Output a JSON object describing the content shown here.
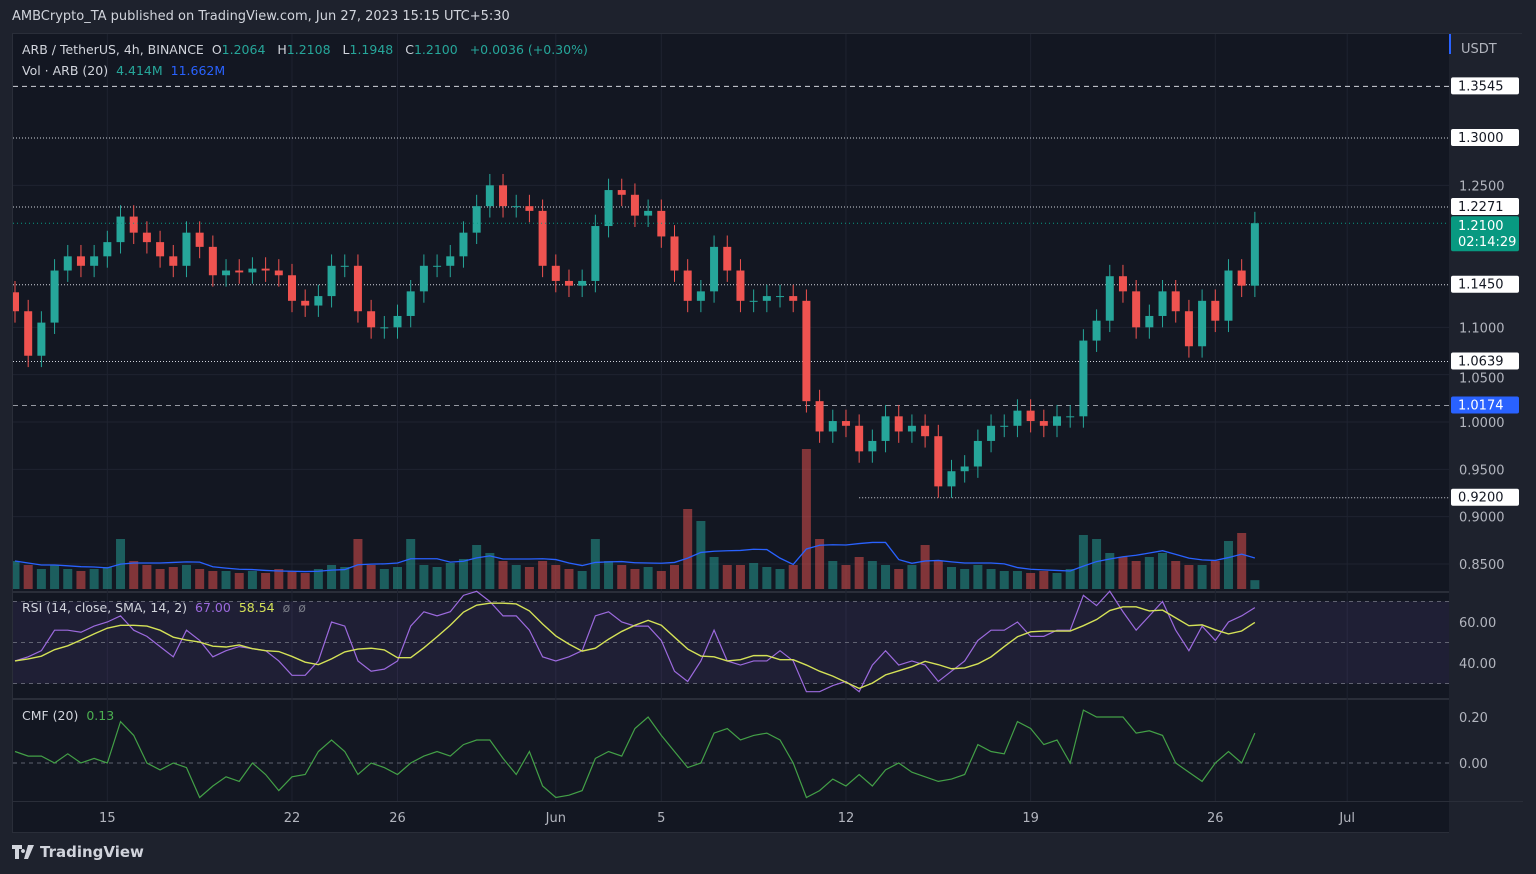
{
  "header": {
    "published": "AMBCrypto_TA published on TradingView.com, Jun 27, 2023 15:15 UTC+5:30"
  },
  "legend": {
    "symbol": "ARB / TetherUS, 4h, BINANCE",
    "o_label": "O",
    "o": "1.2064",
    "h_label": "H",
    "h": "1.2108",
    "l_label": "L",
    "l": "1.1948",
    "c_label": "C",
    "c": "1.2100",
    "change": "+0.0036 (+0.30%)",
    "vol_label": "Vol · ARB (20)",
    "vol": "4.414M",
    "vol_ma": "11.662M",
    "rsi_label": "RSI (14, close, SMA, 14, 2)",
    "rsi": "67.00",
    "rsi_sma": "58.54",
    "rsi_extra1": "ø",
    "rsi_extra2": "ø",
    "cmf_label": "CMF (20)",
    "cmf": "0.13"
  },
  "axis": {
    "currency": "USDT",
    "countdown": "02:14:29"
  },
  "footer": {
    "brand": "TradingView"
  },
  "colors": {
    "up": "#26a69a",
    "down": "#ef5350",
    "vol_ma": "#2962ff",
    "rsi": "#9c6ade",
    "rsi_sma": "#d4e157",
    "cmf": "#43a047",
    "last_price": "#089981",
    "marker": "#2962ff"
  },
  "chart_data": {
    "type": "candlestick",
    "price_ticks": [
      "1.2500",
      "1.1000",
      "1.0500",
      "1.0000",
      "0.9500",
      "0.9000",
      "0.8500"
    ],
    "levels": [
      {
        "value": "1.3545",
        "style": "dashed"
      },
      {
        "value": "1.3000",
        "style": "dotted"
      },
      {
        "value": "1.2271",
        "style": "dotted"
      },
      {
        "value": "1.1450",
        "style": "dotted"
      },
      {
        "value": "1.0639",
        "style": "dotted"
      },
      {
        "value": "1.0174",
        "style": "dashed",
        "highlight": true
      },
      {
        "value": "0.9200",
        "style": "dotted",
        "from": "06-12 12:00"
      }
    ],
    "last_price": "1.2100",
    "x_ticks": [
      {
        "label": "15",
        "date": "05-15 00:00"
      },
      {
        "label": "22",
        "date": "05-22 00:00"
      },
      {
        "label": "26",
        "date": "05-26 00:00"
      },
      {
        "label": "Jun",
        "date": "06-01 00:00"
      },
      {
        "label": "5",
        "date": "06-05 00:00"
      },
      {
        "label": "12",
        "date": "06-12 00:00"
      },
      {
        "label": "19",
        "date": "06-19 00:00"
      },
      {
        "label": "26",
        "date": "06-26 00:00"
      },
      {
        "label": "Jul",
        "date": "07-01 00:00"
      }
    ],
    "x": [
      "05-11 12:00",
      "05-12 00:00",
      "05-12 12:00",
      "05-13 00:00",
      "05-13 12:00",
      "05-14 00:00",
      "05-14 12:00",
      "05-15 00:00",
      "05-15 12:00",
      "05-16 00:00",
      "05-16 12:00",
      "05-17 00:00",
      "05-17 12:00",
      "05-18 00:00",
      "05-18 12:00",
      "05-19 00:00",
      "05-19 12:00",
      "05-20 00:00",
      "05-20 12:00",
      "05-21 00:00",
      "05-21 12:00",
      "05-22 00:00",
      "05-22 12:00",
      "05-23 00:00",
      "05-23 12:00",
      "05-24 00:00",
      "05-24 12:00",
      "05-25 00:00",
      "05-25 12:00",
      "05-26 00:00",
      "05-26 12:00",
      "05-27 00:00",
      "05-27 12:00",
      "05-28 00:00",
      "05-28 12:00",
      "05-29 00:00",
      "05-29 12:00",
      "05-30 00:00",
      "05-30 12:00",
      "05-31 00:00",
      "05-31 12:00",
      "06-01 00:00",
      "06-01 12:00",
      "06-02 00:00",
      "06-02 12:00",
      "06-03 00:00",
      "06-03 12:00",
      "06-04 00:00",
      "06-04 12:00",
      "06-05 00:00",
      "06-05 12:00",
      "06-06 00:00",
      "06-06 12:00",
      "06-07 00:00",
      "06-07 12:00",
      "06-08 00:00",
      "06-08 12:00",
      "06-09 00:00",
      "06-09 12:00",
      "06-10 00:00",
      "06-10 12:00",
      "06-11 00:00",
      "06-11 12:00",
      "06-12 00:00",
      "06-12 12:00",
      "06-13 00:00",
      "06-13 12:00",
      "06-14 00:00",
      "06-14 12:00",
      "06-15 00:00",
      "06-15 12:00",
      "06-16 00:00",
      "06-16 12:00",
      "06-17 00:00",
      "06-17 12:00",
      "06-18 00:00",
      "06-18 12:00",
      "06-19 00:00",
      "06-19 12:00",
      "06-20 00:00",
      "06-20 12:00",
      "06-21 00:00",
      "06-21 12:00",
      "06-22 00:00",
      "06-22 12:00",
      "06-23 00:00",
      "06-23 12:00",
      "06-24 00:00",
      "06-24 12:00",
      "06-25 00:00",
      "06-25 12:00",
      "06-26 00:00",
      "06-26 12:00",
      "06-27 00:00",
      "06-27 12:00"
    ],
    "close": [
      1.117,
      1.07,
      1.105,
      1.16,
      1.175,
      1.165,
      1.175,
      1.19,
      1.217,
      1.2,
      1.19,
      1.175,
      1.165,
      1.2,
      1.185,
      1.155,
      1.16,
      1.158,
      1.162,
      1.16,
      1.155,
      1.128,
      1.123,
      1.133,
      1.165,
      1.165,
      1.117,
      1.1,
      1.1,
      1.112,
      1.138,
      1.165,
      1.165,
      1.175,
      1.2,
      1.228,
      1.25,
      1.228,
      1.228,
      1.223,
      1.165,
      1.149,
      1.144,
      1.149,
      1.207,
      1.245,
      1.24,
      1.218,
      1.223,
      1.196,
      1.16,
      1.128,
      1.138,
      1.185,
      1.16,
      1.128,
      1.128,
      1.133,
      1.133,
      1.128,
      1.022,
      0.99,
      1.001,
      0.996,
      0.969,
      0.98,
      1.006,
      0.99,
      0.996,
      0.985,
      0.932,
      0.948,
      0.953,
      0.98,
      0.996,
      0.996,
      1.012,
      1.001,
      0.996,
      1.006,
      1.006,
      1.086,
      1.107,
      1.154,
      1.138,
      1.1,
      1.112,
      1.138,
      1.117,
      1.08,
      1.128,
      1.107,
      1.16,
      1.144,
      1.21
    ],
    "volume_m": [
      14,
      12,
      10,
      12,
      10,
      9,
      10,
      11,
      25,
      14,
      12,
      10,
      11,
      12,
      10,
      9,
      9,
      8,
      9,
      8,
      10,
      9,
      8,
      10,
      12,
      11,
      25,
      12,
      10,
      11,
      25,
      12,
      11,
      13,
      15,
      22,
      18,
      14,
      12,
      11,
      14,
      12,
      10,
      9,
      25,
      14,
      12,
      10,
      11,
      9,
      12,
      40,
      34,
      16,
      12,
      12,
      13,
      11,
      10,
      12,
      70,
      25,
      14,
      12,
      16,
      14,
      12,
      10,
      12,
      22,
      14,
      11,
      10,
      12,
      10,
      9,
      9,
      8,
      9,
      8,
      10,
      27,
      25,
      18,
      16,
      14,
      16,
      18,
      14,
      12,
      12,
      14,
      24,
      28,
      4.414
    ],
    "rsi": [
      41,
      43,
      46,
      56,
      56,
      55,
      58,
      60,
      63,
      56,
      53,
      48,
      43,
      56,
      51,
      43,
      46,
      48,
      47,
      46,
      41,
      34,
      34,
      41,
      60,
      58,
      41,
      36,
      37,
      41,
      58,
      65,
      63,
      65,
      73,
      75,
      70,
      63,
      63,
      56,
      43,
      41,
      43,
      46,
      63,
      65,
      60,
      58,
      58,
      51,
      36,
      31,
      41,
      56,
      41,
      39,
      41,
      41,
      46,
      41,
      26,
      26,
      29,
      31,
      26,
      39,
      46,
      39,
      41,
      39,
      31,
      36,
      41,
      51,
      56,
      56,
      60,
      53,
      53,
      56,
      56,
      73,
      68,
      75,
      65,
      56,
      63,
      70,
      56,
      46,
      58,
      51,
      60,
      63,
      67
    ],
    "rsi_ticks": [
      "60.00",
      "40.00"
    ],
    "cmf": [
      0.05,
      0.03,
      0.03,
      0.0,
      0.04,
      0.0,
      0.02,
      0.0,
      0.18,
      0.12,
      0.0,
      -0.03,
      0.0,
      -0.02,
      -0.15,
      -0.1,
      -0.06,
      -0.08,
      0.0,
      -0.05,
      -0.12,
      -0.06,
      -0.05,
      0.05,
      0.1,
      0.05,
      -0.05,
      0.0,
      -0.02,
      -0.05,
      0.0,
      0.03,
      0.05,
      0.03,
      0.08,
      0.1,
      0.1,
      0.02,
      -0.05,
      0.05,
      -0.1,
      -0.15,
      -0.14,
      -0.12,
      0.02,
      0.05,
      0.03,
      0.15,
      0.2,
      0.12,
      0.05,
      -0.02,
      0.0,
      0.13,
      0.15,
      0.1,
      0.12,
      0.13,
      0.1,
      0.0,
      -0.15,
      -0.12,
      -0.07,
      -0.1,
      -0.05,
      -0.1,
      -0.03,
      0.0,
      -0.04,
      -0.06,
      -0.08,
      -0.07,
      -0.05,
      0.08,
      0.05,
      0.04,
      0.18,
      0.15,
      0.08,
      0.1,
      0.0,
      0.23,
      0.2,
      0.2,
      0.2,
      0.13,
      0.14,
      0.12,
      0.0,
      -0.04,
      -0.08,
      0.0,
      0.05,
      0.0,
      0.13
    ],
    "cmf_ticks": [
      "0.20",
      "0.00"
    ]
  }
}
